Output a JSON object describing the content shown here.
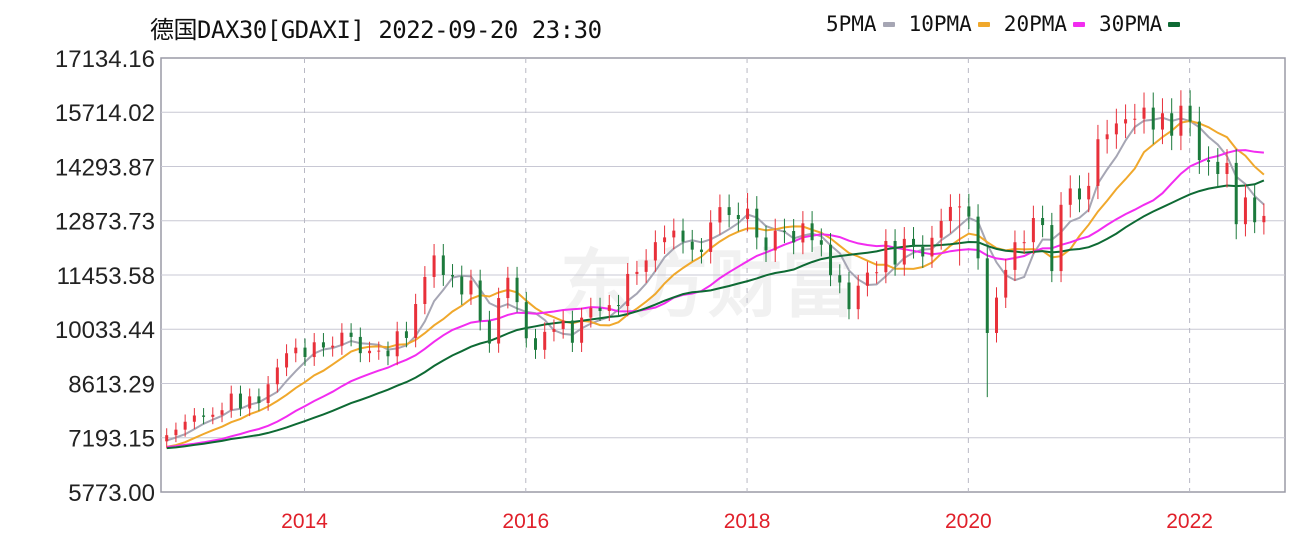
{
  "header": {
    "title": "德国DAX30[GDAXI] 2022-09-20 23:30"
  },
  "watermark": "东方财富",
  "legend": [
    {
      "label": "5PMA",
      "color": "#a6a6b4",
      "period": 5
    },
    {
      "label": "10PMA",
      "color": "#f0a82c",
      "period": 10
    },
    {
      "label": "20PMA",
      "color": "#f22cf0",
      "period": 20
    },
    {
      "label": "30PMA",
      "color": "#0e6a34",
      "period": 30
    }
  ],
  "chart_data": {
    "type": "candlestick",
    "title": "德国DAX30[GDAXI] 2022-09-20 23:30",
    "interval": "monthly",
    "start_month": "2012-10",
    "up_color": "#e8303a",
    "down_color": "#1c7a3c",
    "ylim": [
      5773.0,
      17134.16
    ],
    "yticks": [
      "17134.16",
      "15714.02",
      "14293.87",
      "12873.73",
      "11453.58",
      "10033.44",
      "8613.29",
      "7193.15",
      "5773.00"
    ],
    "xticks": [
      {
        "label": "2014",
        "month_index": 15
      },
      {
        "label": "2016",
        "month_index": 39
      },
      {
        "label": "2018",
        "month_index": 63
      },
      {
        "label": "2020",
        "month_index": 87
      },
      {
        "label": "2022",
        "month_index": 111
      }
    ],
    "pre_history_close": [
      6800,
      6760,
      6720,
      6740,
      6700,
      6820,
      6900,
      7000,
      7050,
      7100,
      6950,
      7000,
      7150,
      7000,
      6900,
      7050,
      6950,
      6750,
      6850,
      6900,
      6950,
      6850,
      6700,
      6650,
      6800,
      7000,
      7180,
      7100,
      7050
    ],
    "open_first": 7100,
    "close": [
      7260,
      7405,
      7612,
      7776,
      7741,
      7795,
      7914,
      8349,
      7959,
      8276,
      8103,
      8594,
      9033,
      9405,
      9552,
      9306,
      9692,
      9556,
      9603,
      9943,
      9833,
      9407,
      9470,
      9474,
      9326,
      9980,
      9806,
      10694,
      11402,
      11966,
      11454,
      11414,
      10945,
      11309,
      10259,
      9660,
      10850,
      11382,
      10743,
      9798,
      9495,
      9965,
      10039,
      10263,
      9680,
      10337,
      10593,
      10511,
      10665,
      10640,
      11481,
      11535,
      11834,
      12313,
      12438,
      12615,
      12325,
      12118,
      12056,
      12829,
      13230,
      13024,
      12918,
      13189,
      12436,
      12097,
      12612,
      12605,
      12306,
      12806,
      12364,
      12247,
      11448,
      11257,
      10559,
      11173,
      11516,
      11526,
      12344,
      11727,
      12399,
      12189,
      11939,
      12428,
      12867,
      13236,
      13249,
      12981,
      11890,
      9936,
      10862,
      11587,
      12311,
      12313,
      12945,
      12761,
      11556,
      13291,
      13719,
      13433,
      13786,
      15008,
      15136,
      15421,
      15531,
      15544,
      15835,
      15261,
      15688,
      15100,
      15885,
      15471,
      14461,
      14415,
      14098,
      14388,
      12784,
      13484,
      12835,
      13000
    ],
    "wick_extension_pct": 2.5,
    "low_overrides": {
      "89": 8256,
      "86": 11700,
      "116": 12390,
      "118": 12550
    },
    "high_overrides": {
      "110": 16290,
      "111": 16290,
      "63": 13600
    }
  }
}
